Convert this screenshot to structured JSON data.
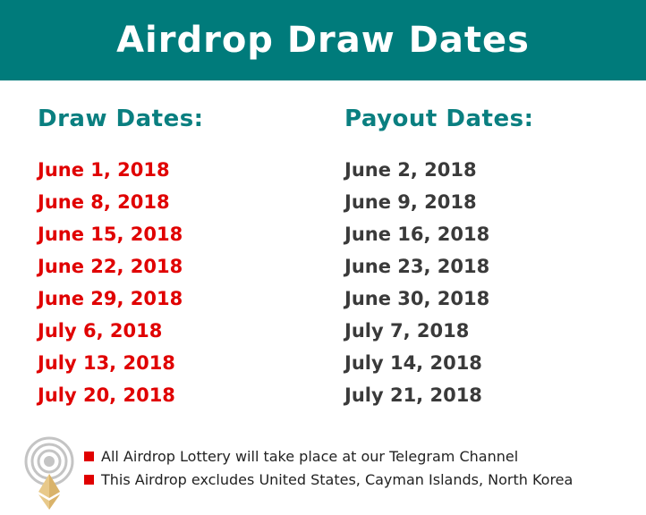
{
  "header": {
    "title": "Airdrop Draw Dates",
    "background_color": "#007b7b"
  },
  "columns": {
    "draw_heading": "Draw Dates:",
    "payout_heading": "Payout Dates:"
  },
  "draw_dates": [
    "June 1, 2018",
    "June 8, 2018",
    "June 15, 2018",
    "June 22, 2018",
    "June 29, 2018",
    "July 6, 2018",
    "July 13, 2018",
    "July 20, 2018"
  ],
  "payout_dates": [
    "June 2, 2018",
    "June 9, 2018",
    "June 16, 2018",
    "June 23, 2018",
    "June 30, 2018",
    "July 7, 2018",
    "July 14, 2018",
    "July 21, 2018"
  ],
  "notes": [
    "All Airdrop Lottery will take place at our Telegram Channel",
    "This Airdrop excludes United States, Cayman Islands, North Korea"
  ],
  "logo": {
    "icon": "ethereum-broadcast-icon"
  },
  "colors": {
    "heading": "#0a7f80",
    "draw_date": "#e00000",
    "payout_date": "#3a3a3a",
    "bullet": "#e00000"
  }
}
